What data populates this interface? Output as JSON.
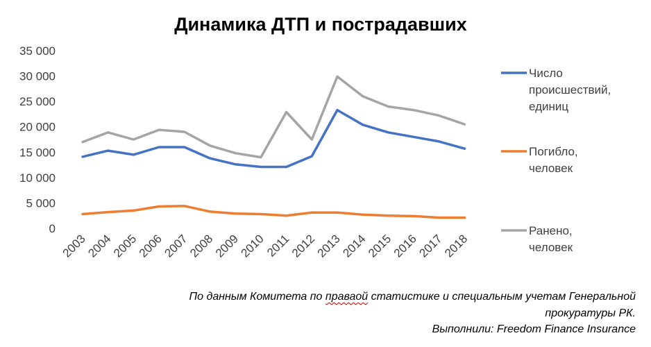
{
  "chart_data": {
    "type": "line",
    "title": "Динамика ДТП и пострадавших",
    "categories": [
      "2003",
      "2004",
      "2005",
      "2006",
      "2007",
      "2008",
      "2009",
      "2010",
      "2011",
      "2012",
      "2013",
      "2014",
      "2015",
      "2016",
      "2017",
      "2018"
    ],
    "ylim": [
      0,
      35000
    ],
    "y_ticks": [
      "35 000",
      "30 000",
      "25 000",
      "20 000",
      "15 000",
      "10 000",
      "5 000",
      "0"
    ],
    "grid": false,
    "legend_position": "right",
    "series": [
      {
        "name": "Число происшествий, единиц",
        "legend_lines": [
          "Число",
          "происшествий,",
          "единиц"
        ],
        "color": "#4472C4",
        "values": [
          14100,
          15300,
          14500,
          16000,
          16000,
          13800,
          12600,
          12100,
          12100,
          14200,
          23300,
          20400,
          18900,
          18000,
          17100,
          15700
        ]
      },
      {
        "name": "Погибло, человек",
        "legend_lines": [
          "Погибло,",
          "человек"
        ],
        "color": "#ED7D31",
        "values": [
          2800,
          3200,
          3500,
          4300,
          4400,
          3300,
          2900,
          2800,
          2500,
          3100,
          3100,
          2700,
          2500,
          2400,
          2100,
          2100
        ]
      },
      {
        "name": "Ранено, человек",
        "legend_lines": [
          "Ранено,",
          "человек"
        ],
        "color": "#A5A5A5",
        "values": [
          17000,
          18900,
          17500,
          19400,
          19000,
          16300,
          14800,
          14000,
          22900,
          17500,
          29900,
          26000,
          24000,
          23300,
          22200,
          20500
        ]
      }
    ]
  },
  "footer": {
    "line1_before": "По данным Комитета по ",
    "line1_misspelled": "праваой",
    "line1_after": " статистике и специальным учетам Генеральной",
    "line2": "прокуратуры РК.",
    "line3": "Выполнили: Freedom Finance Insurance"
  }
}
